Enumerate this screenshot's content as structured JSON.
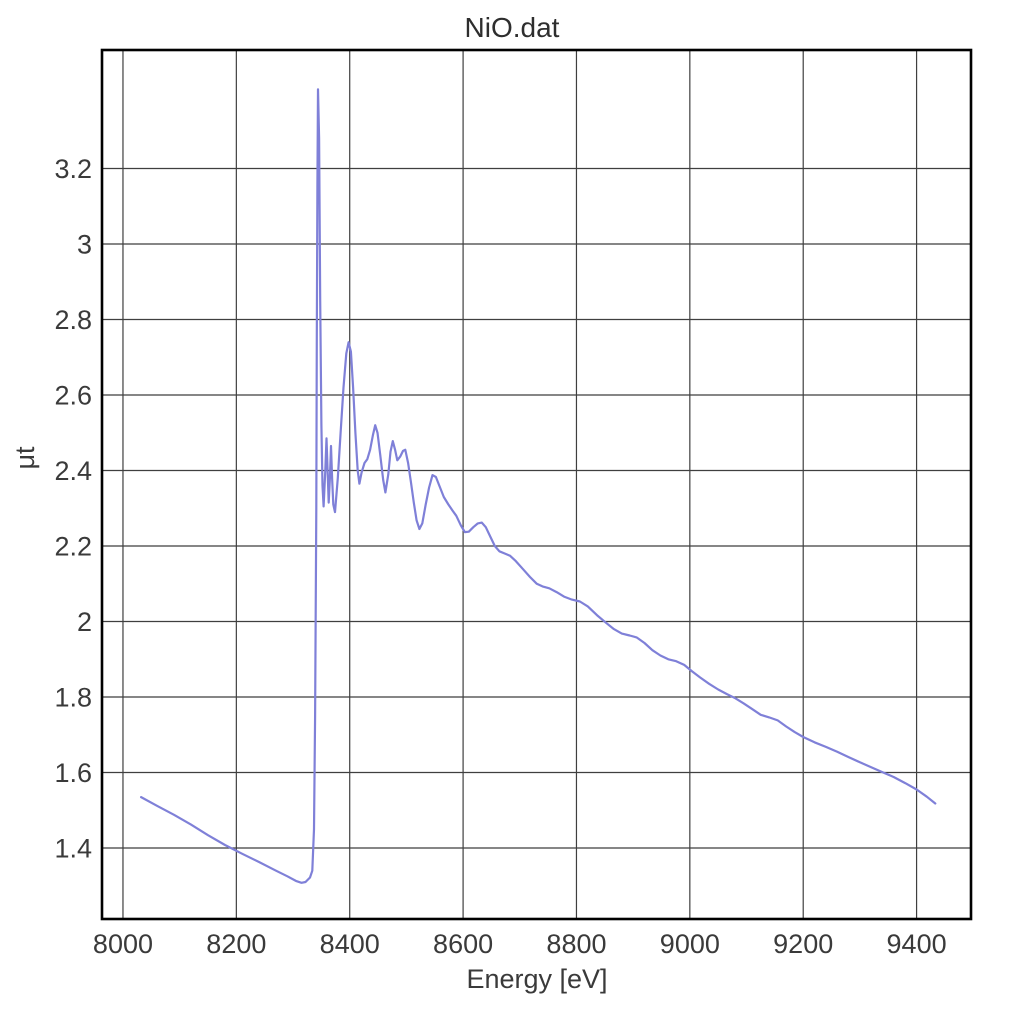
{
  "colors": {
    "background": "#ffffff",
    "frame": "#000000",
    "grid": "#3f3f3f",
    "text": "#3a3a3a",
    "line": "#7f80d8"
  },
  "chart_data": {
    "type": "line",
    "title": "NiO.dat",
    "xlabel": "Energy [eV]",
    "ylabel": "μt",
    "xlim": [
      7963,
      9496
    ],
    "ylim": [
      1.212,
      3.514
    ],
    "x_ticks": [
      8000,
      8200,
      8400,
      8600,
      8800,
      9000,
      9200,
      9400
    ],
    "x_tick_labels": [
      "8000",
      "8200",
      "8400",
      "8600",
      "8800",
      "9000",
      "9200",
      "9400"
    ],
    "y_ticks": [
      1.4,
      1.6,
      1.8,
      2.0,
      2.2,
      2.4,
      2.6,
      2.8,
      3.0,
      3.2
    ],
    "y_tick_labels": [
      "1.4",
      "1.6",
      "1.8",
      "2",
      "2.2",
      "2.4",
      "2.6",
      "2.8",
      "3",
      "3.2"
    ],
    "grid": true,
    "legend": false,
    "series": [
      {
        "name": "NiO.dat",
        "color": "#7f80d8",
        "points": [
          [
            8032,
            1.535
          ],
          [
            8060,
            1.512
          ],
          [
            8090,
            1.488
          ],
          [
            8120,
            1.462
          ],
          [
            8150,
            1.434
          ],
          [
            8180,
            1.408
          ],
          [
            8210,
            1.385
          ],
          [
            8240,
            1.363
          ],
          [
            8270,
            1.34
          ],
          [
            8290,
            1.325
          ],
          [
            8305,
            1.313
          ],
          [
            8315,
            1.308
          ],
          [
            8322,
            1.31
          ],
          [
            8330,
            1.322
          ],
          [
            8334,
            1.34
          ],
          [
            8337,
            1.45
          ],
          [
            8339,
            1.75
          ],
          [
            8341,
            2.3
          ],
          [
            8342,
            2.75
          ],
          [
            8343,
            3.15
          ],
          [
            8344,
            3.41
          ],
          [
            8346,
            3.28
          ],
          [
            8348,
            2.85
          ],
          [
            8350,
            2.52
          ],
          [
            8352,
            2.36
          ],
          [
            8354,
            2.305
          ],
          [
            8357,
            2.4
          ],
          [
            8359,
            2.485
          ],
          [
            8361,
            2.4
          ],
          [
            8363,
            2.315
          ],
          [
            8365,
            2.38
          ],
          [
            8367,
            2.465
          ],
          [
            8369,
            2.38
          ],
          [
            8371,
            2.31
          ],
          [
            8374,
            2.29
          ],
          [
            8379,
            2.38
          ],
          [
            8384,
            2.5
          ],
          [
            8389,
            2.62
          ],
          [
            8394,
            2.71
          ],
          [
            8398,
            2.74
          ],
          [
            8402,
            2.715
          ],
          [
            8406,
            2.62
          ],
          [
            8410,
            2.5
          ],
          [
            8414,
            2.4
          ],
          [
            8417,
            2.365
          ],
          [
            8421,
            2.395
          ],
          [
            8426,
            2.42
          ],
          [
            8431,
            2.43
          ],
          [
            8436,
            2.455
          ],
          [
            8441,
            2.495
          ],
          [
            8445,
            2.52
          ],
          [
            8449,
            2.5
          ],
          [
            8454,
            2.44
          ],
          [
            8459,
            2.375
          ],
          [
            8463,
            2.342
          ],
          [
            8468,
            2.39
          ],
          [
            8472,
            2.45
          ],
          [
            8476,
            2.478
          ],
          [
            8480,
            2.455
          ],
          [
            8484,
            2.427
          ],
          [
            8489,
            2.437
          ],
          [
            8494,
            2.452
          ],
          [
            8498,
            2.455
          ],
          [
            8503,
            2.42
          ],
          [
            8508,
            2.37
          ],
          [
            8513,
            2.315
          ],
          [
            8518,
            2.268
          ],
          [
            8523,
            2.245
          ],
          [
            8528,
            2.26
          ],
          [
            8534,
            2.31
          ],
          [
            8540,
            2.355
          ],
          [
            8546,
            2.388
          ],
          [
            8552,
            2.383
          ],
          [
            8558,
            2.36
          ],
          [
            8566,
            2.33
          ],
          [
            8574,
            2.31
          ],
          [
            8581,
            2.295
          ],
          [
            8588,
            2.28
          ],
          [
            8596,
            2.255
          ],
          [
            8603,
            2.237
          ],
          [
            8610,
            2.238
          ],
          [
            8618,
            2.25
          ],
          [
            8626,
            2.26
          ],
          [
            8633,
            2.262
          ],
          [
            8640,
            2.25
          ],
          [
            8648,
            2.225
          ],
          [
            8656,
            2.2
          ],
          [
            8664,
            2.186
          ],
          [
            8674,
            2.18
          ],
          [
            8683,
            2.174
          ],
          [
            8693,
            2.16
          ],
          [
            8705,
            2.14
          ],
          [
            8718,
            2.118
          ],
          [
            8730,
            2.1
          ],
          [
            8740,
            2.093
          ],
          [
            8752,
            2.088
          ],
          [
            8765,
            2.078
          ],
          [
            8778,
            2.066
          ],
          [
            8792,
            2.058
          ],
          [
            8806,
            2.053
          ],
          [
            8820,
            2.04
          ],
          [
            8836,
            2.017
          ],
          [
            8852,
            1.997
          ],
          [
            8866,
            1.98
          ],
          [
            8880,
            1.968
          ],
          [
            8894,
            1.963
          ],
          [
            8906,
            1.958
          ],
          [
            8920,
            1.943
          ],
          [
            8934,
            1.924
          ],
          [
            8948,
            1.91
          ],
          [
            8962,
            1.9
          ],
          [
            8976,
            1.895
          ],
          [
            8990,
            1.885
          ],
          [
            9004,
            1.868
          ],
          [
            9018,
            1.852
          ],
          [
            9034,
            1.835
          ],
          [
            9050,
            1.82
          ],
          [
            9065,
            1.808
          ],
          [
            9080,
            1.797
          ],
          [
            9095,
            1.783
          ],
          [
            9110,
            1.768
          ],
          [
            9125,
            1.753
          ],
          [
            9140,
            1.746
          ],
          [
            9155,
            1.738
          ],
          [
            9170,
            1.722
          ],
          [
            9185,
            1.707
          ],
          [
            9200,
            1.694
          ],
          [
            9220,
            1.68
          ],
          [
            9240,
            1.668
          ],
          [
            9260,
            1.655
          ],
          [
            9280,
            1.641
          ],
          [
            9300,
            1.627
          ],
          [
            9320,
            1.614
          ],
          [
            9340,
            1.601
          ],
          [
            9360,
            1.588
          ],
          [
            9380,
            1.572
          ],
          [
            9400,
            1.555
          ],
          [
            9418,
            1.536
          ],
          [
            9433,
            1.518
          ]
        ]
      }
    ]
  }
}
